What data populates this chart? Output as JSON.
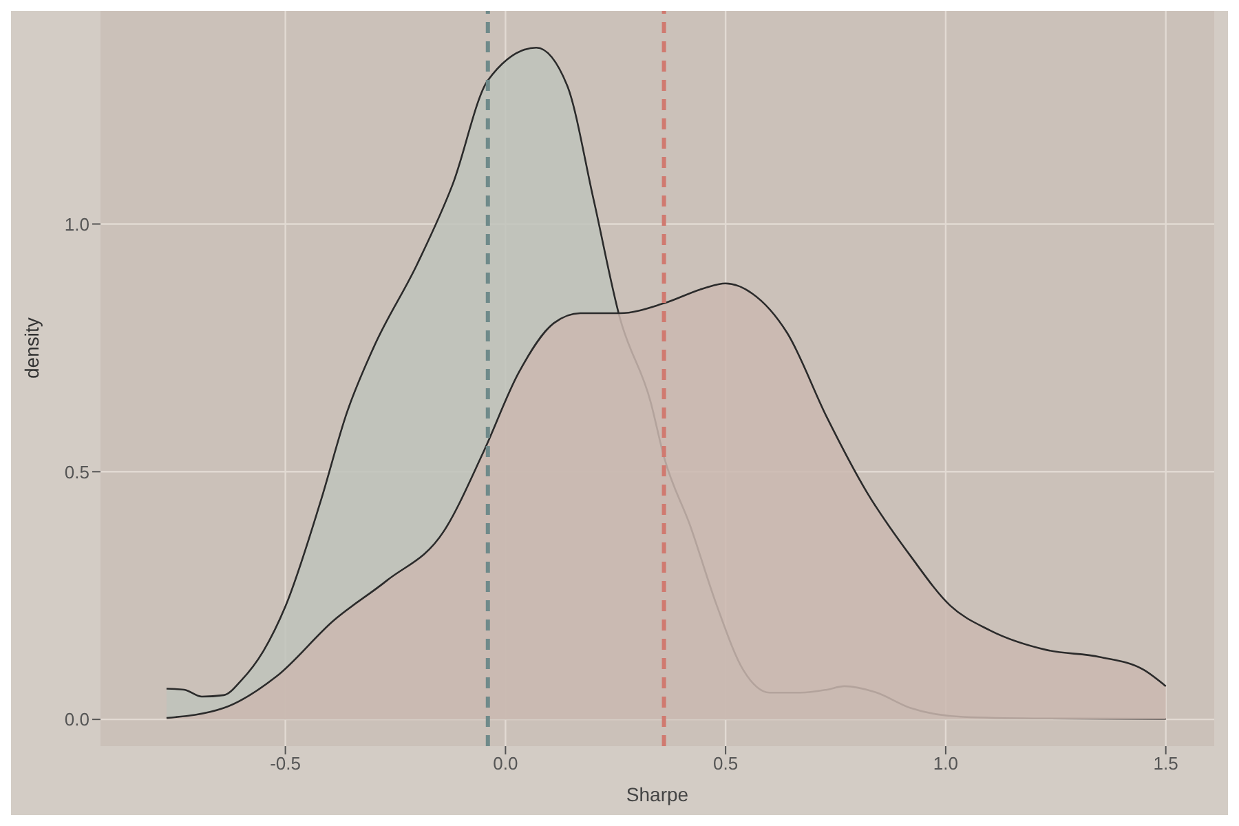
{
  "chart_data": {
    "type": "area",
    "xlabel": "Sharpe",
    "ylabel": "density",
    "xlim": [
      -0.92,
      1.61
    ],
    "ylim": [
      -0.054,
      1.43
    ],
    "xticks": [
      {
        "value": -0.5,
        "label": "-0.5"
      },
      {
        "value": 0,
        "label": "0.0"
      },
      {
        "value": 0.5,
        "label": "0.5"
      },
      {
        "value": 1,
        "label": "1.0"
      },
      {
        "value": 1.5,
        "label": "1.5"
      }
    ],
    "yticks": [
      {
        "value": 0,
        "label": "0.0"
      },
      {
        "value": 0.5,
        "label": "0.5"
      },
      {
        "value": 1,
        "label": "1.0"
      }
    ],
    "grid": true,
    "legend": false,
    "series": [
      {
        "color": "#bfc3bb",
        "x": [
          -0.77,
          -0.73,
          -0.69,
          -0.64,
          -0.6,
          -0.55,
          -0.5,
          -0.42,
          -0.36,
          -0.3,
          -0.2,
          -0.12,
          -0.04,
          0.07,
          0.14,
          0.2,
          0.26,
          0.33,
          0.36,
          0.42,
          0.48,
          0.54,
          0.6,
          0.67,
          0.73,
          0.77,
          0.84,
          0.92,
          1.04,
          1.2,
          1.5
        ],
        "values": [
          0.062,
          0.06,
          0.046,
          0.049,
          0.079,
          0.138,
          0.228,
          0.44,
          0.62,
          0.75,
          0.92,
          1.08,
          1.29,
          1.356,
          1.28,
          1.05,
          0.81,
          0.64,
          0.53,
          0.39,
          0.23,
          0.1,
          0.054,
          0.054,
          0.06,
          0.067,
          0.055,
          0.023,
          0.005,
          0.002,
          0.001
        ]
      },
      {
        "color": "#cbb8b0",
        "x": [
          -0.77,
          -0.64,
          -0.52,
          -0.39,
          -0.27,
          -0.14,
          -0.05,
          0.03,
          0.11,
          0.17,
          0.26,
          0.36,
          0.45,
          0.5,
          0.56,
          0.64,
          0.73,
          0.82,
          0.92,
          1.01,
          1.1,
          1.23,
          1.35,
          1.45,
          1.5
        ],
        "values": [
          0.003,
          0.023,
          0.087,
          0.2,
          0.28,
          0.38,
          0.54,
          0.7,
          0.8,
          0.82,
          0.82,
          0.84,
          0.87,
          0.88,
          0.86,
          0.78,
          0.61,
          0.46,
          0.33,
          0.23,
          0.18,
          0.14,
          0.126,
          0.1,
          0.067
        ]
      }
    ],
    "ref_lines": [
      {
        "axis": "x",
        "value": -0.04,
        "color": "#6f8a8a",
        "line_style": "dashed"
      },
      {
        "axis": "x",
        "value": 0.36,
        "color": "#d07a70",
        "line_style": "dashed"
      }
    ]
  }
}
